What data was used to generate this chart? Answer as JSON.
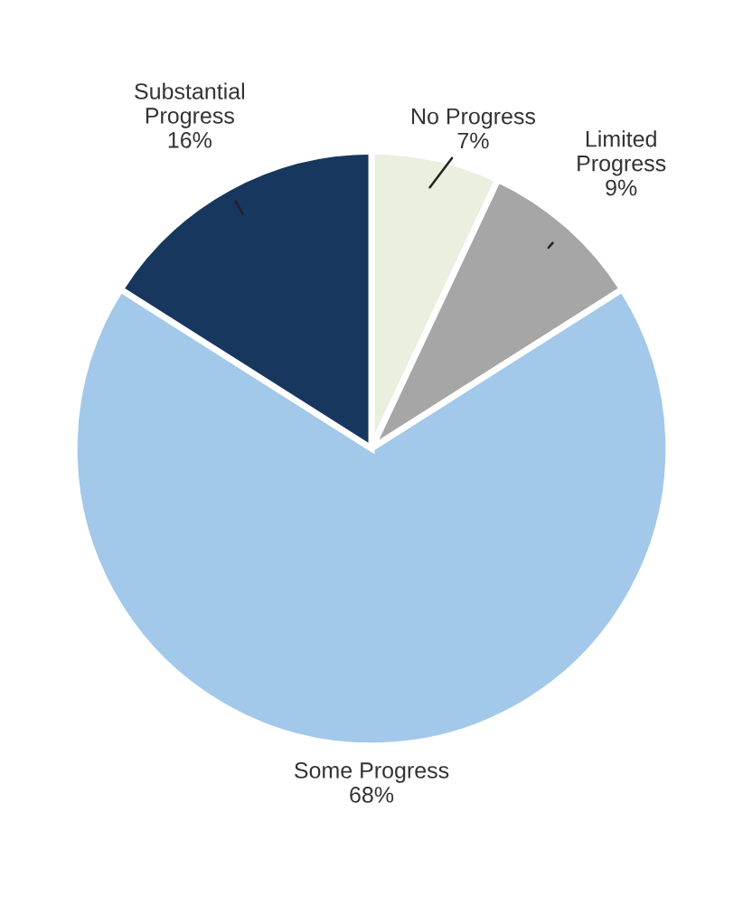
{
  "chart_data": {
    "type": "pie",
    "categories": [
      "No Progress",
      "Limited Progress",
      "Some Progress",
      "Substantial Progress"
    ],
    "values": [
      7,
      9,
      68,
      16
    ],
    "colors": [
      "#ebefdf",
      "#a6a6a6",
      "#a2c8ea",
      "#17375e"
    ],
    "value_labels": [
      "7%",
      "9%",
      "68%",
      "16%"
    ],
    "legend": false
  }
}
